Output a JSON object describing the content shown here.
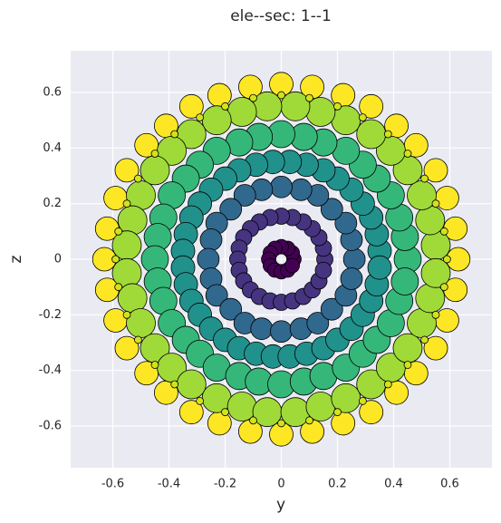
{
  "chart_data": {
    "type": "scatter",
    "title": "ele--sec: 1--1",
    "x_label": "y",
    "y_label": "z",
    "xlim": [
      -0.75,
      0.75
    ],
    "ylim": [
      -0.75,
      0.75
    ],
    "xticks": [
      -0.6,
      -0.4,
      -0.2,
      0.0,
      0.2,
      0.4,
      0.6
    ],
    "yticks": [
      -0.6,
      -0.4,
      -0.2,
      0.0,
      0.2,
      0.4,
      0.6
    ],
    "grid": true,
    "series": [
      {
        "color": "#fde725",
        "x": [
          0.63,
          0.62,
          0.59,
          0.55,
          0.48,
          0.41,
          0.32,
          0.22,
          0.11,
          0,
          -0.11,
          -0.22,
          -0.32,
          -0.41,
          -0.48,
          -0.55,
          -0.59,
          -0.62,
          -0.63,
          -0.62,
          -0.59,
          -0.55,
          -0.48,
          -0.41,
          -0.32,
          -0.22,
          -0.11,
          0,
          0.11,
          0.22,
          0.32,
          0.41,
          0.48,
          0.55,
          0.59,
          0.62
        ],
        "y": [
          0,
          0.11,
          0.22,
          0.32,
          0.41,
          0.48,
          0.55,
          0.59,
          0.62,
          0.63,
          0.62,
          0.59,
          0.55,
          0.48,
          0.41,
          0.32,
          0.22,
          0.11,
          0,
          -0.11,
          -0.22,
          -0.32,
          -0.41,
          -0.48,
          -0.55,
          -0.59,
          -0.62,
          -0.63,
          -0.62,
          -0.59,
          -0.55,
          -0.48,
          -0.41,
          -0.32,
          -0.22,
          -0.11
        ]
      },
      {
        "color": "#a0da39",
        "x": [
          0.55,
          0.53,
          0.5,
          0.45,
          0.39,
          0.32,
          0.23,
          0.14,
          0.05,
          -0.05,
          -0.14,
          -0.23,
          -0.32,
          -0.39,
          -0.45,
          -0.5,
          -0.53,
          -0.55,
          -0.55,
          -0.53,
          -0.5,
          -0.45,
          -0.39,
          -0.32,
          -0.23,
          -0.14,
          -0.05,
          0.05,
          0.14,
          0.23,
          0.32,
          0.39,
          0.45,
          0.5,
          0.53,
          0.55
        ],
        "y": [
          0.05,
          0.14,
          0.23,
          0.32,
          0.39,
          0.45,
          0.5,
          0.53,
          0.55,
          0.55,
          0.53,
          0.5,
          0.45,
          0.39,
          0.32,
          0.23,
          0.14,
          0.05,
          -0.05,
          -0.14,
          -0.23,
          -0.32,
          -0.39,
          -0.45,
          -0.5,
          -0.53,
          -0.55,
          -0.55,
          -0.53,
          -0.5,
          -0.45,
          -0.39,
          -0.32,
          -0.23,
          -0.14,
          -0.05
        ]
      },
      {
        "color": "#d2e21b",
        "x": [
          0.59,
          0.58,
          0.55,
          0.51,
          0.45,
          0.38,
          0.29,
          0.2,
          0.1,
          0,
          -0.1,
          -0.2,
          -0.29,
          -0.38,
          -0.45,
          -0.51,
          -0.55,
          -0.58,
          -0.59,
          -0.58,
          -0.55,
          -0.51,
          -0.45,
          -0.38,
          -0.29,
          -0.2,
          -0.1,
          0,
          0.1,
          0.2,
          0.29,
          0.38,
          0.45,
          0.51,
          0.55,
          0.58
        ],
        "y": [
          0,
          0.1,
          0.2,
          0.29,
          0.38,
          0.45,
          0.51,
          0.55,
          0.58,
          0.59,
          0.58,
          0.55,
          0.51,
          0.45,
          0.38,
          0.29,
          0.2,
          0.1,
          0,
          -0.1,
          -0.2,
          -0.29,
          -0.38,
          -0.45,
          -0.51,
          -0.55,
          -0.58,
          -0.59,
          -0.58,
          -0.55,
          -0.51,
          -0.45,
          -0.38,
          -0.29,
          -0.2,
          -0.1
        ]
      },
      {
        "color": "#35b779",
        "x": [
          0.45,
          0.44,
          0.42,
          0.39,
          0.34,
          0.29,
          0.23,
          0.15,
          0.08,
          0,
          -0.08,
          -0.15,
          -0.23,
          -0.29,
          -0.34,
          -0.39,
          -0.42,
          -0.44,
          -0.45,
          -0.44,
          -0.42,
          -0.39,
          -0.34,
          -0.29,
          -0.23,
          -0.15,
          -0.08,
          0,
          0.08,
          0.15,
          0.23,
          0.29,
          0.34,
          0.39,
          0.42,
          0.44
        ],
        "y": [
          0,
          0.08,
          0.15,
          0.23,
          0.29,
          0.34,
          0.39,
          0.42,
          0.44,
          0.45,
          0.44,
          0.42,
          0.39,
          0.34,
          0.29,
          0.23,
          0.15,
          0.08,
          0,
          -0.08,
          -0.15,
          -0.23,
          -0.29,
          -0.34,
          -0.39,
          -0.42,
          -0.44,
          -0.45,
          -0.44,
          -0.42,
          -0.39,
          -0.34,
          -0.29,
          -0.23,
          -0.15,
          -0.08
        ]
      },
      {
        "color": "#21918c",
        "x": [
          0.35,
          0.34,
          0.32,
          0.29,
          0.25,
          0.2,
          0.15,
          0.09,
          0.03,
          -0.03,
          -0.09,
          -0.15,
          -0.2,
          -0.25,
          -0.29,
          -0.32,
          -0.34,
          -0.35,
          -0.35,
          -0.34,
          -0.32,
          -0.29,
          -0.25,
          -0.2,
          -0.15,
          -0.09,
          -0.03,
          0.03,
          0.09,
          0.15,
          0.2,
          0.25,
          0.29,
          0.32,
          0.34,
          0.35
        ],
        "y": [
          0.03,
          0.09,
          0.15,
          0.2,
          0.25,
          0.29,
          0.32,
          0.34,
          0.35,
          0.35,
          0.34,
          0.32,
          0.29,
          0.25,
          0.2,
          0.15,
          0.09,
          0.03,
          -0.03,
          -0.09,
          -0.15,
          -0.2,
          -0.25,
          -0.29,
          -0.32,
          -0.34,
          -0.35,
          -0.35,
          -0.34,
          -0.32,
          -0.29,
          -0.25,
          -0.2,
          -0.15,
          -0.09,
          -0.03
        ]
      },
      {
        "color": "#31688e",
        "x": [
          0.26,
          0.25,
          0.23,
          0.18,
          0.13,
          0.07,
          0,
          -0.07,
          -0.13,
          -0.18,
          -0.23,
          -0.25,
          -0.26,
          -0.25,
          -0.23,
          -0.18,
          -0.13,
          -0.07,
          0,
          0.07,
          0.13,
          0.18,
          0.23,
          0.25
        ],
        "y": [
          0,
          0.07,
          0.13,
          0.18,
          0.23,
          0.25,
          0.26,
          0.25,
          0.23,
          0.18,
          0.13,
          0.07,
          0,
          -0.07,
          -0.13,
          -0.18,
          -0.23,
          -0.25,
          -0.26,
          -0.25,
          -0.23,
          -0.18,
          -0.13,
          -0.07
        ]
      },
      {
        "color": "#463480",
        "x": [
          0.155,
          0.15,
          0.134,
          0.11,
          0.078,
          0.04,
          0,
          -0.04,
          -0.078,
          -0.11,
          -0.134,
          -0.15,
          -0.155,
          -0.15,
          -0.134,
          -0.11,
          -0.078,
          -0.04,
          0,
          0.04,
          0.078,
          0.11,
          0.134,
          0.15
        ],
        "y": [
          0,
          0.04,
          0.078,
          0.11,
          0.134,
          0.15,
          0.155,
          0.15,
          0.134,
          0.11,
          0.078,
          0.04,
          0,
          -0.04,
          -0.078,
          -0.11,
          -0.134,
          -0.15,
          -0.155,
          -0.15,
          -0.134,
          -0.11,
          -0.078,
          -0.04
        ]
      },
      {
        "color": "#440154",
        "x": [
          0.045,
          0.039,
          0.023,
          0,
          -0.023,
          -0.039,
          -0.045,
          -0.039,
          -0.023,
          0,
          0.023,
          0.039
        ],
        "y": [
          0,
          0.023,
          0.039,
          0.045,
          0.039,
          0.023,
          0,
          -0.023,
          -0.039,
          -0.045,
          -0.039,
          -0.023
        ]
      }
    ]
  }
}
